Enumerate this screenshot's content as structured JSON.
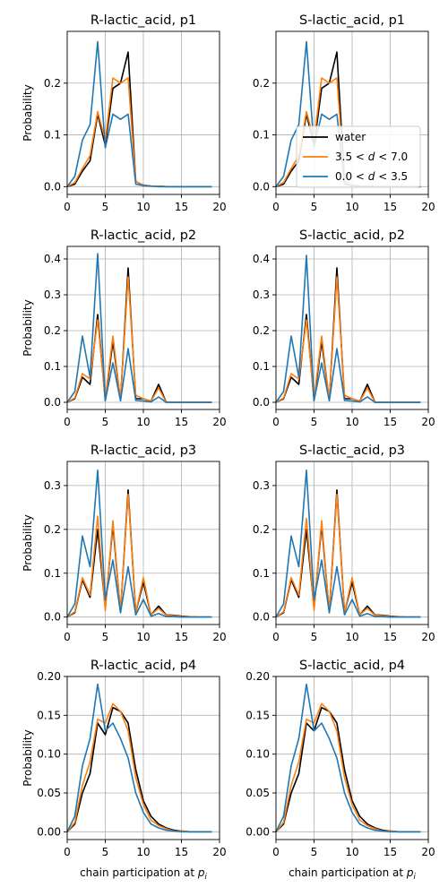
{
  "figure": {
    "legend": {
      "placement": "lower-right of S-lactic_acid, p1",
      "entries": [
        {
          "label_text": "water",
          "color": "#000000"
        },
        {
          "label_text": "3.5 < d < 7.0",
          "color": "#ff7f0e"
        },
        {
          "label_text": "0.0 < d < 3.5",
          "color": "#1f77b4"
        }
      ]
    }
  },
  "chart_data": [
    {
      "type": "line",
      "title": "R-lactic_acid, p1",
      "ylabel": "Probability",
      "xlabel": "",
      "xlim": [
        0,
        20
      ],
      "ylim": [
        -0.015,
        0.3
      ],
      "grid": true,
      "xticks": [
        0,
        5,
        10,
        15,
        20
      ],
      "yticks": [
        0.0,
        0.1,
        0.2
      ],
      "x": [
        0,
        1,
        2,
        3,
        4,
        5,
        6,
        7,
        8,
        9,
        10,
        11,
        12,
        13,
        14,
        15,
        16,
        17,
        18,
        19
      ],
      "series": [
        {
          "name": "water",
          "color": "#000000",
          "values": [
            0,
            0.005,
            0.03,
            0.05,
            0.14,
            0.08,
            0.19,
            0.2,
            0.26,
            0.01,
            0.003,
            0.001,
            0.001,
            0,
            0,
            0,
            0,
            0,
            0,
            0
          ]
        },
        {
          "name": "3.5 < d < 7.0",
          "color": "#ff7f0e",
          "values": [
            0,
            0.008,
            0.035,
            0.06,
            0.145,
            0.09,
            0.21,
            0.2,
            0.21,
            0.01,
            0.003,
            0.001,
            0.001,
            0,
            0,
            0,
            0,
            0,
            0,
            0
          ]
        },
        {
          "name": "0.0 < d < 3.5",
          "color": "#1f77b4",
          "values": [
            0,
            0.02,
            0.09,
            0.12,
            0.28,
            0.075,
            0.14,
            0.13,
            0.14,
            0.005,
            0.002,
            0.001,
            0,
            0,
            0,
            0,
            0,
            0,
            0,
            0
          ]
        }
      ]
    },
    {
      "type": "line",
      "title": "S-lactic_acid, p1",
      "ylabel": "",
      "xlabel": "",
      "xlim": [
        0,
        20
      ],
      "ylim": [
        -0.015,
        0.3
      ],
      "grid": true,
      "xticks": [
        0,
        5,
        10,
        15,
        20
      ],
      "yticks": [
        0.0,
        0.1,
        0.2
      ],
      "x": [
        0,
        1,
        2,
        3,
        4,
        5,
        6,
        7,
        8,
        9,
        10,
        11,
        12,
        13,
        14,
        15,
        16,
        17,
        18,
        19
      ],
      "series": [
        {
          "name": "water",
          "color": "#000000",
          "values": [
            0,
            0.005,
            0.03,
            0.05,
            0.14,
            0.08,
            0.19,
            0.2,
            0.26,
            0.01,
            0.003,
            0.001,
            0.001,
            0,
            0,
            0,
            0,
            0,
            0,
            0
          ]
        },
        {
          "name": "3.5 < d < 7.0",
          "color": "#ff7f0e",
          "values": [
            0,
            0.008,
            0.035,
            0.06,
            0.145,
            0.09,
            0.21,
            0.2,
            0.21,
            0.01,
            0.003,
            0.001,
            0.001,
            0,
            0,
            0,
            0,
            0,
            0,
            0
          ]
        },
        {
          "name": "0.0 < d < 3.5",
          "color": "#1f77b4",
          "values": [
            0,
            0.02,
            0.09,
            0.12,
            0.28,
            0.075,
            0.14,
            0.13,
            0.14,
            0.005,
            0.002,
            0.001,
            0,
            0,
            0,
            0,
            0,
            0,
            0,
            0
          ]
        }
      ]
    },
    {
      "type": "line",
      "title": "R-lactic_acid, p2",
      "ylabel": "Probability",
      "xlabel": "",
      "xlim": [
        0,
        20
      ],
      "ylim": [
        -0.02,
        0.435
      ],
      "grid": true,
      "xticks": [
        0,
        5,
        10,
        15,
        20
      ],
      "yticks": [
        0.0,
        0.1,
        0.2,
        0.3,
        0.4
      ],
      "x": [
        0,
        1,
        2,
        3,
        4,
        5,
        6,
        7,
        8,
        9,
        10,
        11,
        12,
        13,
        14,
        15,
        16,
        17,
        18,
        19
      ],
      "series": [
        {
          "name": "water",
          "color": "#000000",
          "values": [
            0,
            0.01,
            0.07,
            0.05,
            0.245,
            0.005,
            0.17,
            0.005,
            0.375,
            0.01,
            0.01,
            0.003,
            0.05,
            0,
            0,
            0,
            0,
            0,
            0,
            0
          ]
        },
        {
          "name": "3.5 < d < 7.0",
          "color": "#ff7f0e",
          "values": [
            0,
            0.012,
            0.08,
            0.065,
            0.23,
            0.01,
            0.185,
            0.006,
            0.35,
            0.02,
            0.01,
            0.003,
            0.04,
            0,
            0,
            0,
            0,
            0,
            0,
            0
          ]
        },
        {
          "name": "0.0 < d < 3.5",
          "color": "#1f77b4",
          "values": [
            0,
            0.03,
            0.185,
            0.07,
            0.415,
            0.005,
            0.11,
            0.004,
            0.15,
            0.005,
            0.004,
            0.001,
            0.015,
            0,
            0,
            0,
            0,
            0,
            0,
            0
          ]
        }
      ]
    },
    {
      "type": "line",
      "title": "S-lactic_acid, p2",
      "ylabel": "",
      "xlabel": "",
      "xlim": [
        0,
        20
      ],
      "ylim": [
        -0.02,
        0.435
      ],
      "grid": true,
      "xticks": [
        0,
        5,
        10,
        15,
        20
      ],
      "yticks": [
        0.0,
        0.1,
        0.2,
        0.3,
        0.4
      ],
      "x": [
        0,
        1,
        2,
        3,
        4,
        5,
        6,
        7,
        8,
        9,
        10,
        11,
        12,
        13,
        14,
        15,
        16,
        17,
        18,
        19
      ],
      "series": [
        {
          "name": "water",
          "color": "#000000",
          "values": [
            0,
            0.01,
            0.07,
            0.05,
            0.245,
            0.005,
            0.17,
            0.005,
            0.375,
            0.01,
            0.01,
            0.003,
            0.05,
            0,
            0,
            0,
            0,
            0,
            0,
            0
          ]
        },
        {
          "name": "3.5 < d < 7.0",
          "color": "#ff7f0e",
          "values": [
            0,
            0.012,
            0.08,
            0.065,
            0.23,
            0.01,
            0.185,
            0.006,
            0.35,
            0.02,
            0.01,
            0.003,
            0.04,
            0,
            0,
            0,
            0,
            0,
            0,
            0
          ]
        },
        {
          "name": "0.0 < d < 3.5",
          "color": "#1f77b4",
          "values": [
            0,
            0.03,
            0.185,
            0.07,
            0.41,
            0.005,
            0.11,
            0.004,
            0.15,
            0.005,
            0.004,
            0.001,
            0.015,
            0,
            0,
            0,
            0,
            0,
            0,
            0
          ]
        }
      ]
    },
    {
      "type": "line",
      "title": "R-lactic_acid, p3",
      "ylabel": "Probability",
      "xlabel": "",
      "xlim": [
        0,
        20
      ],
      "ylim": [
        -0.017,
        0.355
      ],
      "grid": true,
      "xticks": [
        0,
        5,
        10,
        15,
        20
      ],
      "yticks": [
        0.0,
        0.1,
        0.2,
        0.3
      ],
      "x": [
        0,
        1,
        2,
        3,
        4,
        5,
        6,
        7,
        8,
        9,
        10,
        11,
        12,
        13,
        14,
        15,
        16,
        17,
        18,
        19
      ],
      "series": [
        {
          "name": "water",
          "color": "#000000",
          "values": [
            0,
            0.01,
            0.085,
            0.045,
            0.2,
            0.02,
            0.21,
            0.01,
            0.29,
            0.01,
            0.08,
            0.005,
            0.025,
            0.005,
            0.004,
            0.002,
            0.001,
            0,
            0,
            0
          ]
        },
        {
          "name": "3.5 < d < 7.0",
          "color": "#ff7f0e",
          "values": [
            0,
            0.012,
            0.09,
            0.05,
            0.23,
            0.015,
            0.22,
            0.01,
            0.28,
            0.01,
            0.09,
            0.005,
            0.02,
            0.004,
            0.003,
            0.001,
            0.001,
            0,
            0,
            0
          ]
        },
        {
          "name": "0.0 < d < 3.5",
          "color": "#1f77b4",
          "values": [
            0,
            0.03,
            0.185,
            0.115,
            0.335,
            0.04,
            0.13,
            0.01,
            0.115,
            0.005,
            0.04,
            0.002,
            0.008,
            0.001,
            0.001,
            0,
            0,
            0,
            0,
            0
          ]
        }
      ]
    },
    {
      "type": "line",
      "title": "S-lactic_acid, p3",
      "ylabel": "",
      "xlabel": "",
      "xlim": [
        0,
        20
      ],
      "ylim": [
        -0.017,
        0.355
      ],
      "grid": true,
      "xticks": [
        0,
        5,
        10,
        15,
        20
      ],
      "yticks": [
        0.0,
        0.1,
        0.2,
        0.3
      ],
      "x": [
        0,
        1,
        2,
        3,
        4,
        5,
        6,
        7,
        8,
        9,
        10,
        11,
        12,
        13,
        14,
        15,
        16,
        17,
        18,
        19
      ],
      "series": [
        {
          "name": "water",
          "color": "#000000",
          "values": [
            0,
            0.01,
            0.085,
            0.045,
            0.2,
            0.02,
            0.21,
            0.01,
            0.29,
            0.01,
            0.08,
            0.005,
            0.025,
            0.005,
            0.004,
            0.002,
            0.001,
            0,
            0,
            0
          ]
        },
        {
          "name": "3.5 < d < 7.0",
          "color": "#ff7f0e",
          "values": [
            0,
            0.012,
            0.09,
            0.05,
            0.225,
            0.015,
            0.22,
            0.01,
            0.28,
            0.01,
            0.09,
            0.005,
            0.02,
            0.004,
            0.003,
            0.001,
            0.001,
            0,
            0,
            0
          ]
        },
        {
          "name": "0.0 < d < 3.5",
          "color": "#1f77b4",
          "values": [
            0,
            0.03,
            0.185,
            0.115,
            0.335,
            0.04,
            0.13,
            0.01,
            0.115,
            0.005,
            0.04,
            0.002,
            0.008,
            0.001,
            0.001,
            0,
            0,
            0,
            0,
            0
          ]
        }
      ]
    },
    {
      "type": "line",
      "title": "R-lactic_acid, p4",
      "ylabel": "Probability",
      "xlabel": "chain participation at p_i",
      "xlim": [
        0,
        20
      ],
      "ylim": [
        -0.01,
        0.2
      ],
      "grid": true,
      "xticks": [
        0,
        5,
        10,
        15,
        20
      ],
      "yticks": [
        0.0,
        0.05,
        0.1,
        0.15,
        0.2
      ],
      "x": [
        0,
        1,
        2,
        3,
        4,
        5,
        6,
        7,
        8,
        9,
        10,
        11,
        12,
        13,
        14,
        15,
        16,
        17,
        18,
        19
      ],
      "series": [
        {
          "name": "water",
          "color": "#000000",
          "values": [
            0,
            0.01,
            0.05,
            0.075,
            0.14,
            0.125,
            0.16,
            0.155,
            0.14,
            0.08,
            0.04,
            0.02,
            0.01,
            0.005,
            0.002,
            0.001,
            0,
            0,
            0,
            0
          ]
        },
        {
          "name": "3.5 < d < 7.0",
          "color": "#ff7f0e",
          "values": [
            0,
            0.012,
            0.06,
            0.09,
            0.145,
            0.14,
            0.165,
            0.155,
            0.13,
            0.07,
            0.035,
            0.015,
            0.008,
            0.004,
            0.001,
            0.001,
            0,
            0,
            0,
            0
          ]
        },
        {
          "name": "0.0 < d < 3.5",
          "color": "#1f77b4",
          "values": [
            0,
            0.02,
            0.085,
            0.12,
            0.19,
            0.13,
            0.14,
            0.12,
            0.095,
            0.05,
            0.025,
            0.01,
            0.005,
            0.002,
            0.001,
            0,
            0,
            0,
            0,
            0
          ]
        }
      ]
    },
    {
      "type": "line",
      "title": "S-lactic_acid, p4",
      "ylabel": "",
      "xlabel": "chain participation at p_i",
      "xlim": [
        0,
        20
      ],
      "ylim": [
        -0.01,
        0.2
      ],
      "grid": true,
      "xticks": [
        0,
        5,
        10,
        15,
        20
      ],
      "yticks": [
        0.0,
        0.05,
        0.1,
        0.15,
        0.2
      ],
      "x": [
        0,
        1,
        2,
        3,
        4,
        5,
        6,
        7,
        8,
        9,
        10,
        11,
        12,
        13,
        14,
        15,
        16,
        17,
        18,
        19
      ],
      "series": [
        {
          "name": "water",
          "color": "#000000",
          "values": [
            0,
            0.01,
            0.05,
            0.075,
            0.14,
            0.13,
            0.16,
            0.155,
            0.14,
            0.08,
            0.04,
            0.02,
            0.01,
            0.005,
            0.002,
            0.001,
            0,
            0,
            0,
            0
          ]
        },
        {
          "name": "3.5 < d < 7.0",
          "color": "#ff7f0e",
          "values": [
            0,
            0.012,
            0.06,
            0.09,
            0.145,
            0.14,
            0.165,
            0.155,
            0.13,
            0.07,
            0.035,
            0.015,
            0.008,
            0.004,
            0.001,
            0.001,
            0,
            0,
            0,
            0
          ]
        },
        {
          "name": "0.0 < d < 3.5",
          "color": "#1f77b4",
          "values": [
            0,
            0.02,
            0.085,
            0.12,
            0.19,
            0.13,
            0.14,
            0.12,
            0.095,
            0.05,
            0.025,
            0.01,
            0.005,
            0.002,
            0.001,
            0,
            0,
            0,
            0,
            0
          ]
        }
      ]
    }
  ]
}
